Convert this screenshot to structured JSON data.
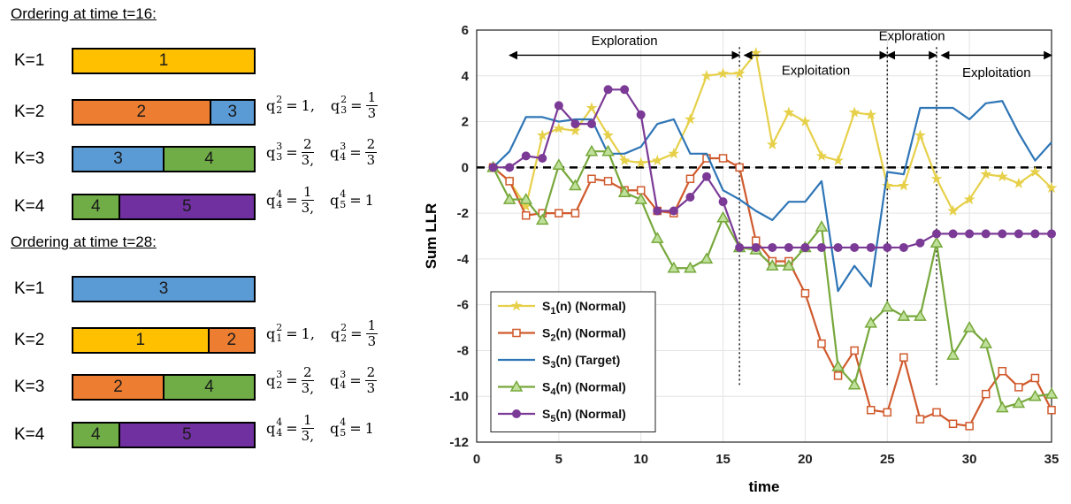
{
  "orderings": [
    {
      "title": "Ordering at time t=16:",
      "rows": [
        {
          "k": "K=1",
          "segments": [
            {
              "label": "1",
              "color": "#FFC000",
              "span": 1
            }
          ],
          "terms": []
        },
        {
          "k": "K=2",
          "segments": [
            {
              "label": "2",
              "color": "#ED7D31",
              "span": 0.76
            },
            {
              "label": "3",
              "color": "#5B9BD5",
              "span": 0.24
            }
          ],
          "terms": [
            {
              "name": "q",
              "sub": "2",
              "sup": "2",
              "value": "1,"
            },
            {
              "name": "q",
              "sub": "3",
              "sup": "2",
              "num": "1",
              "den": "3"
            }
          ]
        },
        {
          "k": "K=3",
          "segments": [
            {
              "label": "3",
              "color": "#5B9BD5",
              "span": 0.5
            },
            {
              "label": "4",
              "color": "#70AD47",
              "span": 0.5
            }
          ],
          "terms": [
            {
              "name": "q",
              "sub": "3",
              "sup": "3",
              "num": "2",
              "den": "3,"
            },
            {
              "name": "q",
              "sub": "4",
              "sup": "3",
              "num": "2",
              "den": "3"
            }
          ]
        },
        {
          "k": "K=4",
          "segments": [
            {
              "label": "4",
              "color": "#70AD47",
              "span": 0.25
            },
            {
              "label": "5",
              "color": "#7030A0",
              "span": 0.75
            }
          ],
          "terms": [
            {
              "name": "q",
              "sub": "4",
              "sup": "4",
              "num": "1",
              "den": "3,"
            },
            {
              "name": "q",
              "sub": "5",
              "sup": "4",
              "value": "1"
            }
          ]
        }
      ]
    },
    {
      "title": "Ordering at time t=28:",
      "rows": [
        {
          "k": "K=1",
          "segments": [
            {
              "label": "3",
              "color": "#5B9BD5",
              "span": 1
            }
          ],
          "terms": []
        },
        {
          "k": "K=2",
          "segments": [
            {
              "label": "1",
              "color": "#FFC000",
              "span": 0.75
            },
            {
              "label": "2",
              "color": "#ED7D31",
              "span": 0.25
            }
          ],
          "terms": [
            {
              "name": "q",
              "sub": "1",
              "sup": "2",
              "value": "1,"
            },
            {
              "name": "q",
              "sub": "2",
              "sup": "2",
              "num": "1",
              "den": "3"
            }
          ]
        },
        {
          "k": "K=3",
          "segments": [
            {
              "label": "2",
              "color": "#ED7D31",
              "span": 0.5
            },
            {
              "label": "4",
              "color": "#70AD47",
              "span": 0.5
            }
          ],
          "terms": [
            {
              "name": "q",
              "sub": "2",
              "sup": "3",
              "num": "2",
              "den": "3,"
            },
            {
              "name": "q",
              "sub": "4",
              "sup": "3",
              "num": "2",
              "den": "3"
            }
          ]
        },
        {
          "k": "K=4",
          "segments": [
            {
              "label": "4",
              "color": "#70AD47",
              "span": 0.25
            },
            {
              "label": "5",
              "color": "#7030A0",
              "span": 0.75
            }
          ],
          "terms": [
            {
              "name": "q",
              "sub": "4",
              "sup": "4",
              "num": "1",
              "den": "3,"
            },
            {
              "name": "q",
              "sub": "5",
              "sup": "4",
              "value": "1"
            }
          ]
        }
      ]
    }
  ],
  "chart_data": {
    "type": "line",
    "title": "",
    "xlabel": "time",
    "ylabel": "Sum LLR",
    "xlim": [
      0,
      35
    ],
    "ylim": [
      -12,
      6
    ],
    "xticks": [
      0,
      5,
      10,
      15,
      20,
      25,
      30,
      35
    ],
    "yticks": [
      -12,
      -10,
      -8,
      -6,
      -4,
      -2,
      0,
      2,
      4,
      6
    ],
    "grid": true,
    "reference_line": {
      "y": 0,
      "style": "dashed"
    },
    "x": [
      1,
      2,
      3,
      4,
      5,
      6,
      7,
      8,
      9,
      10,
      11,
      12,
      13,
      14,
      15,
      16,
      17,
      18,
      19,
      20,
      21,
      22,
      23,
      24,
      25,
      26,
      27,
      28,
      29,
      30,
      31,
      32,
      33,
      34,
      35
    ],
    "series": [
      {
        "name": "S₁(n) (Normal)",
        "name_main": "S",
        "name_sub": "1",
        "name_rest": "(n) (Normal)",
        "color": "#E6D04A",
        "marker": "star",
        "values": [
          0,
          -0.6,
          -1.7,
          1.4,
          1.7,
          1.6,
          2.6,
          1.4,
          0.3,
          0.2,
          0.3,
          0.6,
          2.1,
          4.0,
          4.1,
          4.1,
          5.0,
          1.0,
          2.4,
          2.0,
          0.5,
          0.3,
          2.4,
          2.3,
          -0.8,
          -0.8,
          1.4,
          -0.5,
          -1.9,
          -1.4,
          -0.3,
          -0.4,
          -0.7,
          -0.2,
          -0.9
        ]
      },
      {
        "name": "S₂(n) (Normal)",
        "name_main": "S",
        "name_sub": "2",
        "name_rest": "(n) (Normal)",
        "color": "#D05A2D",
        "marker": "square",
        "values": [
          0,
          -0.6,
          -2.1,
          -2.0,
          -2.0,
          -2.0,
          -0.5,
          -0.6,
          -1.0,
          -1.0,
          -1.9,
          -2.0,
          -0.5,
          0.4,
          0.4,
          0,
          -3.2,
          -4.1,
          -4.1,
          -5.5,
          -7.7,
          -9.1,
          -8.0,
          -10.6,
          -10.7,
          -8.3,
          -11.0,
          -10.7,
          -11.2,
          -11.3,
          -9.9,
          -8.9,
          -9.6,
          -9.2,
          -10.6
        ]
      },
      {
        "name": "S₃(n) (Target)",
        "name_main": "S",
        "name_sub": "3",
        "name_rest": "(n) (Target)",
        "color": "#2E75B6",
        "marker": "none",
        "values": [
          0,
          0.7,
          2.2,
          2.2,
          2.0,
          2.1,
          2.1,
          0.6,
          0.6,
          0.9,
          1.9,
          2.1,
          0.6,
          0.6,
          -1.0,
          -1.4,
          -1.9,
          -2.3,
          -1.5,
          -1.5,
          -0.6,
          -5.4,
          -4.3,
          -5.2,
          -0.2,
          -0.3,
          2.6,
          2.6,
          2.6,
          2.1,
          2.8,
          2.9,
          1.5,
          0.3,
          1.1
        ]
      },
      {
        "name": "S₄(n) (Normal)",
        "name_main": "S",
        "name_sub": "4",
        "name_rest": "(n) (Normal)",
        "color": "#77A83C",
        "marker": "triangle",
        "values": [
          0,
          -1.4,
          -1.4,
          -2.3,
          0.1,
          -0.8,
          0.7,
          0.7,
          -1.1,
          -1.4,
          -3.1,
          -4.4,
          -4.4,
          -4.0,
          -2.2,
          -3.5,
          -3.6,
          -4.3,
          -4.3,
          -3.5,
          -2.6,
          -8.7,
          -9.5,
          -6.8,
          -6.1,
          -6.5,
          -6.5,
          -3.3,
          -8.2,
          -7.0,
          -7.7,
          -10.5,
          -10.3,
          -10.0,
          -9.9
        ]
      },
      {
        "name": "S₅(n) (Normal)",
        "name_main": "S",
        "name_sub": "5",
        "name_rest": "(n) (Normal)",
        "color": "#7B3A96",
        "marker": "circle",
        "values": [
          0,
          0,
          0.5,
          0.4,
          2.7,
          1.9,
          1.9,
          3.4,
          3.4,
          2.3,
          -1.9,
          -1.9,
          -1.3,
          -0.4,
          -1.5,
          -3.5,
          -3.5,
          -3.5,
          -3.5,
          -3.5,
          -3.5,
          -3.5,
          -3.5,
          -3.5,
          -3.5,
          -3.5,
          -3.3,
          -2.9,
          -2.9,
          -2.9,
          -2.9,
          -2.9,
          -2.9,
          -2.9,
          -2.9
        ]
      }
    ],
    "phase_lines": [
      16,
      25,
      28
    ],
    "annotations": [
      {
        "text": "Exploration",
        "from": 2,
        "to": 16,
        "y": 4.9,
        "text_y": 5.35
      },
      {
        "text": "Exploitation",
        "from": 16.3,
        "to": 25,
        "y": 4.9,
        "text_y": 4.05
      },
      {
        "text": "Exploration",
        "from": 25,
        "to": 28,
        "y": 4.9,
        "text_y": 5.55
      },
      {
        "text": "Exploitation",
        "from": 28.3,
        "to": 35,
        "y": 4.9,
        "text_y": 3.95
      }
    ],
    "legend": "bottom-left"
  }
}
